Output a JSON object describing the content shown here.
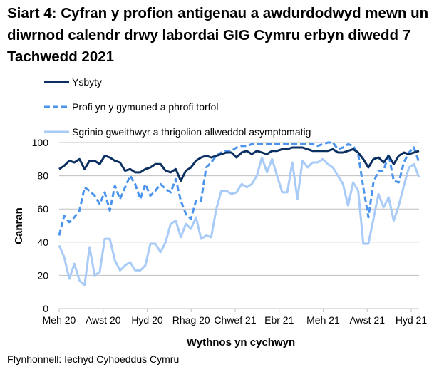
{
  "chart_data": {
    "type": "line",
    "title": "Siart 4: Cyfran y profion antigenau a awdurdodwyd mewn un diwrnod calendr drwy labordai GIG Cymru erbyn diwedd 7 Tachwedd 2021",
    "xlabel": "Wythnos yn cychwyn",
    "ylabel": "Canran",
    "source": "Ffynhonnell: Iechyd Cyhoeddus Cymru",
    "ylim": [
      0,
      100
    ],
    "yticks": [
      0,
      20,
      40,
      60,
      80,
      100
    ],
    "xtick_labels": [
      "Meh 20",
      "Awst 20",
      "Hyd 20",
      "Rhag 20",
      "Chwef 21",
      "Ebr 21",
      "Meh 21",
      "Awst 21",
      "Hyd 21"
    ],
    "grid": "horizontal",
    "legend_position": "top-left",
    "series": [
      {
        "name": "Ysbyty",
        "color": "#0b2f60",
        "style": "solid",
        "values": [
          84,
          86,
          89,
          88,
          90,
          84,
          89,
          89,
          87,
          92,
          91,
          89,
          88,
          83,
          84,
          82,
          82,
          84,
          85,
          87,
          87,
          83,
          82,
          84,
          77,
          83,
          85,
          89,
          91,
          92,
          91,
          92,
          93,
          94,
          94,
          91,
          94,
          95,
          93,
          95,
          94,
          93,
          95,
          95,
          96,
          96,
          97,
          97,
          97,
          96,
          95,
          95,
          95,
          95,
          96,
          94,
          94,
          95,
          96,
          94,
          90,
          85,
          90,
          91,
          88,
          92,
          87,
          92,
          94,
          93,
          94,
          95
        ]
      },
      {
        "name": "Profi yn y gymuned a phrofi torfol",
        "color": "#4a94ee",
        "style": "dashed",
        "values": [
          44,
          56,
          52,
          55,
          59,
          73,
          71,
          68,
          63,
          70,
          59,
          74,
          66,
          73,
          80,
          75,
          66,
          75,
          68,
          71,
          75,
          72,
          70,
          78,
          65,
          57,
          54,
          65,
          65,
          85,
          88,
          92,
          94,
          95,
          95,
          97,
          98,
          98,
          99,
          99,
          99,
          99,
          99,
          99,
          99,
          99,
          99,
          99,
          99,
          99,
          99,
          98,
          99,
          100,
          100,
          96,
          97,
          99,
          98,
          93,
          73,
          55,
          76,
          83,
          83,
          93,
          77,
          76,
          88,
          94,
          97,
          88
        ]
      },
      {
        "name": "Sgrinio gweithwyr a thrigolion allweddol asymptomatig",
        "color": "#a8cbf7",
        "style": "solid",
        "values": [
          38,
          31,
          18,
          27,
          17,
          14,
          37,
          20,
          22,
          42,
          42,
          29,
          23,
          26,
          28,
          23,
          23,
          26,
          39,
          39,
          34,
          40,
          51,
          53,
          43,
          51,
          48,
          55,
          42,
          44,
          43,
          60,
          71,
          71,
          69,
          70,
          75,
          73,
          75,
          80,
          91,
          82,
          90,
          80,
          70,
          70,
          88,
          66,
          89,
          85,
          88,
          88,
          90,
          87,
          85,
          80,
          75,
          62,
          76,
          71,
          39,
          39,
          54,
          69,
          61,
          67,
          53,
          62,
          74,
          85,
          87,
          79
        ]
      }
    ]
  }
}
